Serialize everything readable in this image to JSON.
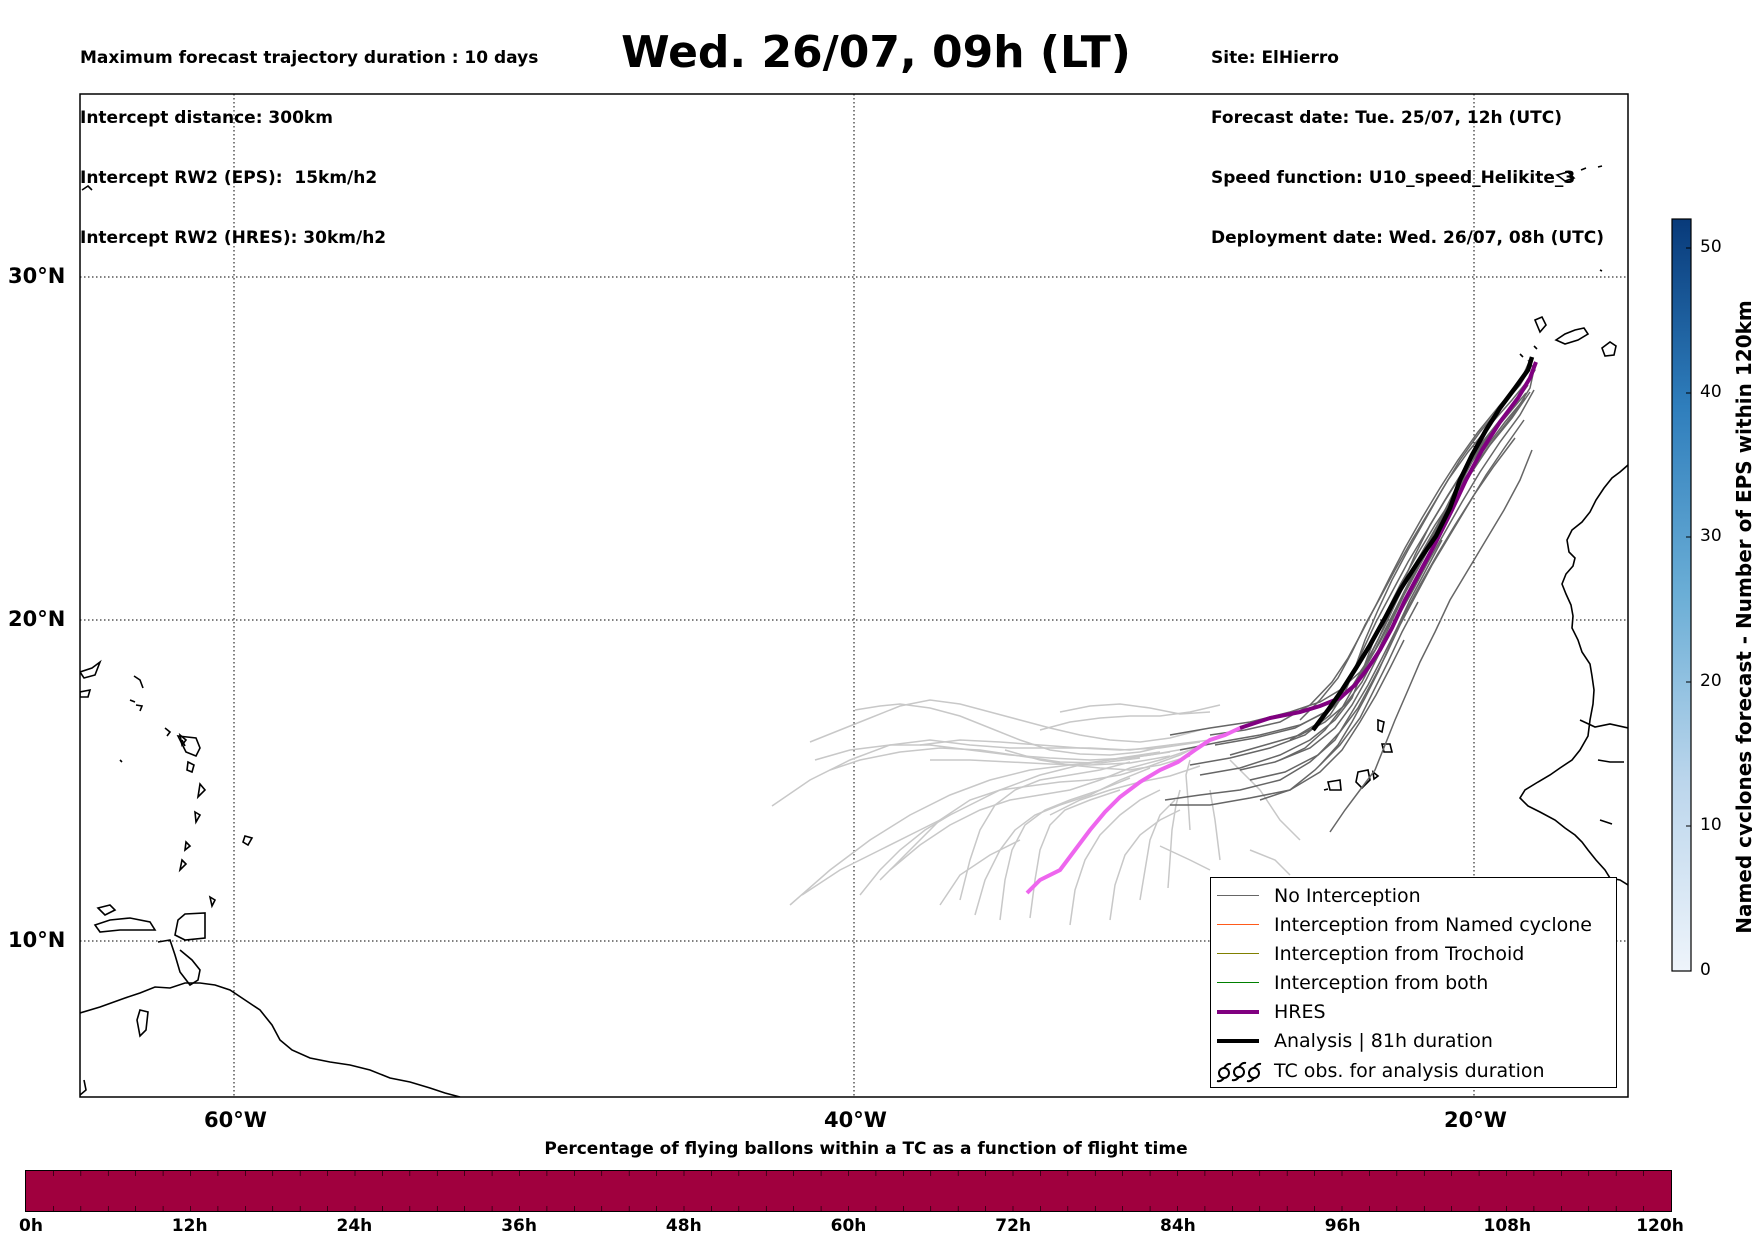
{
  "header_left": [
    "Maximum forecast trajectory duration : 10 days",
    "Intercept distance: 300km",
    "Intercept RW2 (EPS):  15km/h2",
    "Intercept RW2 (HRES): 30km/h2"
  ],
  "title": "Wed. 26/07, 09h (LT)",
  "header_right": [
    "Site: ElHierro",
    "Forecast date: Tue. 25/07, 12h (UTC)",
    "Speed function: U10_speed_Helikite_3",
    "Deployment date: Wed. 26/07, 08h (UTC)"
  ],
  "map": {
    "lat_labels": [
      "30°N",
      "20°N",
      "10°N"
    ],
    "lon_labels": [
      "60°W",
      "40°W",
      "20°W"
    ]
  },
  "legend": [
    {
      "label": "No Interception",
      "color": "#666666"
    },
    {
      "label": "Interception from Named cyclone",
      "color": "#ff5a1a"
    },
    {
      "label": "Interception from Trochoid",
      "color": "#808000"
    },
    {
      "label": "Interception from both",
      "color": "#008000"
    },
    {
      "label": "HRES",
      "color": "#800080"
    },
    {
      "label": "Analysis | 81h duration",
      "color": "#000000"
    },
    {
      "label": "TC obs. for analysis duration",
      "icon": "cyclone-symbols-icon"
    }
  ],
  "colorbar_bottom": {
    "title": "Percentage of flying ballons within a TC as a function of flight time",
    "ticks": [
      "0h",
      "12h",
      "24h",
      "36h",
      "48h",
      "60h",
      "72h",
      "84h",
      "96h",
      "108h",
      "120h"
    ],
    "color": "#a0003e"
  },
  "colorbar_right": {
    "label": "Named cyclones forecast - Number of EPS within 120km",
    "ticks": [
      "50",
      "40",
      "30",
      "20",
      "10",
      "0"
    ]
  }
}
